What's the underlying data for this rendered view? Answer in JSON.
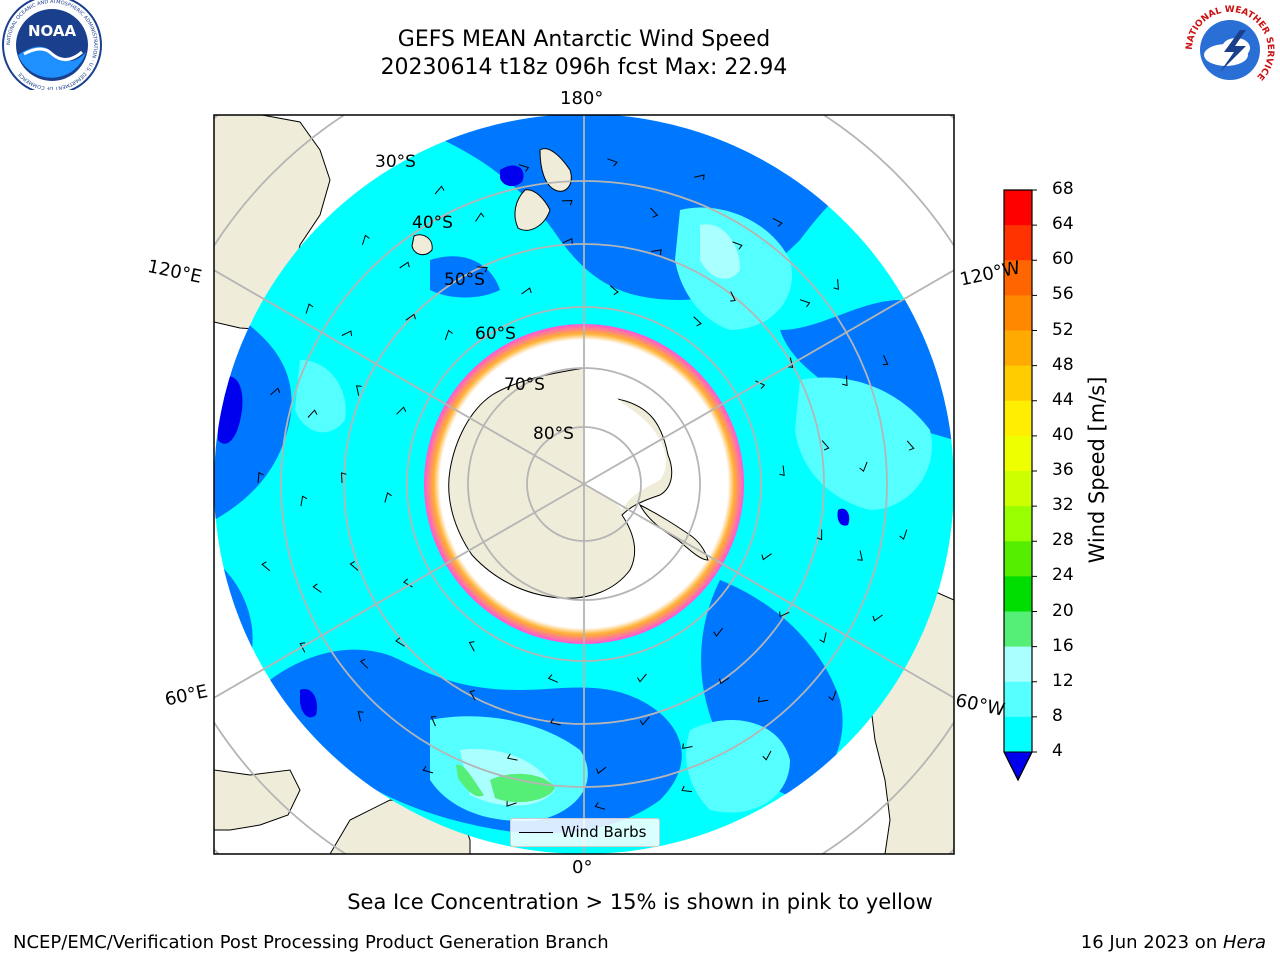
{
  "title": {
    "line1": "GEFS MEAN Antarctic Wind Speed",
    "line2": "20230614 t18z 096h fcst   Max: 22.94"
  },
  "map": {
    "projection": "south-polar-stereographic",
    "colors": {
      "land": "#efedd9",
      "ice_shelf": "#ffffff",
      "gridline": "#b5b5b5",
      "sea_ice_edge": [
        "#ff55dd",
        "#ffb030"
      ]
    },
    "longitude_labels": {
      "lon_180": "180°",
      "lon_0": "0°",
      "lon_120e": "120°E",
      "lon_60e": "60°E",
      "lon_120w": "120°W",
      "lon_60w": "60°W"
    },
    "latitude_labels": [
      "30°S",
      "40°S",
      "50°S",
      "60°S",
      "70°S",
      "80°S"
    ]
  },
  "colorbar": {
    "title": "Wind Speed [m/s]",
    "ticks": [
      "68",
      "64",
      "60",
      "56",
      "52",
      "48",
      "44",
      "40",
      "36",
      "32",
      "28",
      "24",
      "20",
      "16",
      "12",
      "8",
      "4"
    ],
    "colors_top_to_bottom": [
      "#ff0000",
      "#ff3300",
      "#ff6600",
      "#ff8800",
      "#ffaa00",
      "#ffcc00",
      "#ffee00",
      "#eeff00",
      "#ccff00",
      "#99ff00",
      "#55ee00",
      "#00dd00",
      "#55ee77",
      "#aaffff",
      "#55ffff",
      "#00ffff",
      "#0077ff"
    ],
    "extend_color": "#0000ee"
  },
  "legend": {
    "label": "Wind Barbs"
  },
  "footnote": "Sea Ice Concentration > 15% is shown in pink to yellow",
  "footer": {
    "left": "NCEP/EMC/Verification Post Processing Product Generation Branch",
    "right_prefix": "16 Jun 2023 on ",
    "right_italic": "Hera"
  },
  "logos": {
    "noaa": "NOAA",
    "noaa_ring": "NATIONAL OCEANIC AND ATMOSPHERIC ADMINISTRATION · U.S. DEPARTMENT OF COMMERCE",
    "nws_ring": "NATIONAL WEATHER SERVICE"
  }
}
